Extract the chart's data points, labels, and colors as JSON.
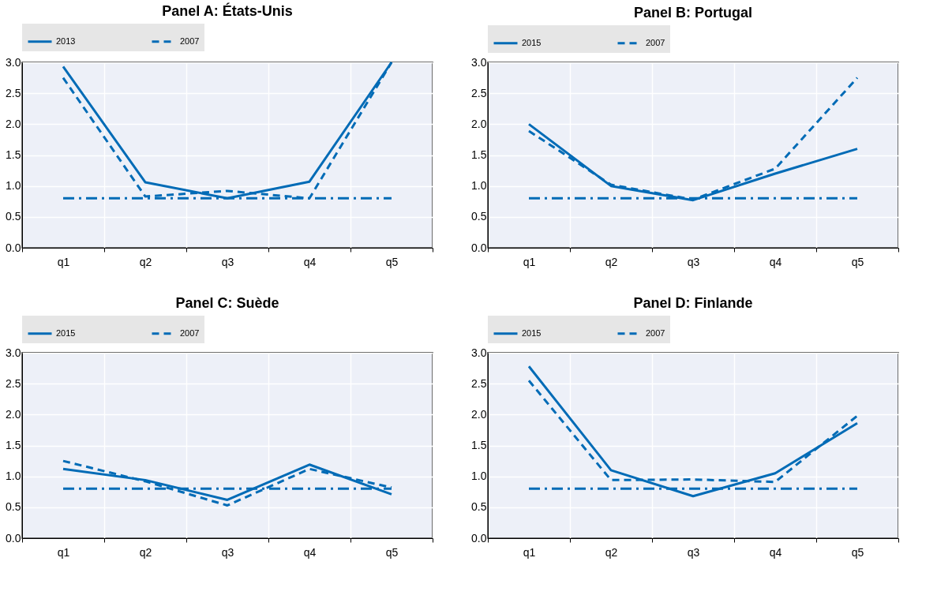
{
  "chart_data": [
    {
      "type": "line",
      "title": "Panel A: États-Unis",
      "categories": [
        "q1",
        "q2",
        "q3",
        "q4",
        "q5"
      ],
      "ylim": [
        0,
        3
      ],
      "yticks": [
        {
          "value": 0,
          "label": "0.0"
        },
        0.5,
        {
          "value": 1,
          "label": "1.0"
        },
        1.5,
        {
          "value": 2,
          "label": "2.0"
        },
        2.5,
        {
          "value": 3,
          "label": "3.0"
        }
      ],
      "grid": true,
      "legend": "top",
      "marker": "none",
      "series": [
        {
          "name": "2013",
          "color": "#006bb6",
          "line_style": "solid",
          "values": [
            2.93,
            1.06,
            0.8,
            1.07,
            3.0
          ]
        },
        {
          "name": "2007",
          "color": "#006bb6",
          "line_style": "dashed",
          "values": [
            2.75,
            0.83,
            0.92,
            0.8,
            3.0
          ]
        },
        {
          "color": "#006bb6",
          "line_style": "dashdot",
          "values": [
            0.8,
            0.8,
            0.8,
            0.8,
            0.8
          ]
        }
      ]
    },
    {
      "type": "line",
      "title": "Panel B: Portugal",
      "categories": [
        "q1",
        "q2",
        "q3",
        "q4",
        "q5"
      ],
      "ylim": [
        0,
        3
      ],
      "yticks": [
        {
          "value": 0,
          "label": "0.0"
        },
        0.5,
        {
          "value": 1,
          "label": "1.0"
        },
        1.5,
        {
          "value": 2,
          "label": "2.0"
        },
        2.5,
        {
          "value": 3,
          "label": "3.0"
        }
      ],
      "grid": true,
      "legend": "top",
      "marker": "none",
      "series": [
        {
          "name": "2015",
          "color": "#006bb6",
          "line_style": "solid",
          "values": [
            2.0,
            1.0,
            0.77,
            1.2,
            1.6
          ]
        },
        {
          "name": "2007",
          "color": "#006bb6",
          "line_style": "dashed",
          "values": [
            1.89,
            1.02,
            0.78,
            1.28,
            2.75
          ]
        },
        {
          "color": "#006bb6",
          "line_style": "dashdot",
          "values": [
            0.8,
            0.8,
            0.8,
            0.8,
            0.8
          ]
        }
      ]
    },
    {
      "type": "line",
      "title": "Panel C: Suède",
      "categories": [
        "q1",
        "q2",
        "q3",
        "q4",
        "q5"
      ],
      "ylim": [
        0,
        3
      ],
      "yticks": [
        {
          "value": 0,
          "label": "0.0"
        },
        0.5,
        {
          "value": 1,
          "label": "1.0"
        },
        1.5,
        {
          "value": 2,
          "label": "2.0"
        },
        2.5,
        {
          "value": 3,
          "label": "3.0"
        }
      ],
      "grid": true,
      "legend": "top",
      "marker": "none",
      "series": [
        {
          "name": "2015",
          "color": "#006bb6",
          "line_style": "solid",
          "values": [
            1.12,
            0.94,
            0.62,
            1.19,
            0.71
          ]
        },
        {
          "name": "2007",
          "color": "#006bb6",
          "line_style": "dashed",
          "values": [
            1.25,
            0.92,
            0.53,
            1.12,
            0.82
          ]
        },
        {
          "color": "#006bb6",
          "line_style": "dashdot",
          "values": [
            0.8,
            0.8,
            0.8,
            0.8,
            0.8
          ]
        }
      ]
    },
    {
      "type": "line",
      "title": "Panel D: Finlande",
      "categories": [
        "q1",
        "q2",
        "q3",
        "q4",
        "q5"
      ],
      "ylim": [
        0,
        3
      ],
      "yticks": [
        {
          "value": 0,
          "label": "0.0"
        },
        0.5,
        {
          "value": 1,
          "label": "1.0"
        },
        1.5,
        {
          "value": 2,
          "label": "2.0"
        },
        2.5,
        {
          "value": 3,
          "label": "3.0"
        }
      ],
      "grid": true,
      "legend": "top",
      "marker": "none",
      "series": [
        {
          "name": "2015",
          "color": "#006bb6",
          "line_style": "solid",
          "values": [
            2.78,
            1.1,
            0.68,
            1.05,
            1.86
          ]
        },
        {
          "name": "2007",
          "color": "#006bb6",
          "line_style": "dashed",
          "values": [
            2.55,
            0.94,
            0.95,
            0.91,
            1.98
          ]
        },
        {
          "color": "#006bb6",
          "line_style": "dashdot",
          "values": [
            0.8,
            0.8,
            0.8,
            0.8,
            0.8
          ]
        }
      ]
    }
  ]
}
